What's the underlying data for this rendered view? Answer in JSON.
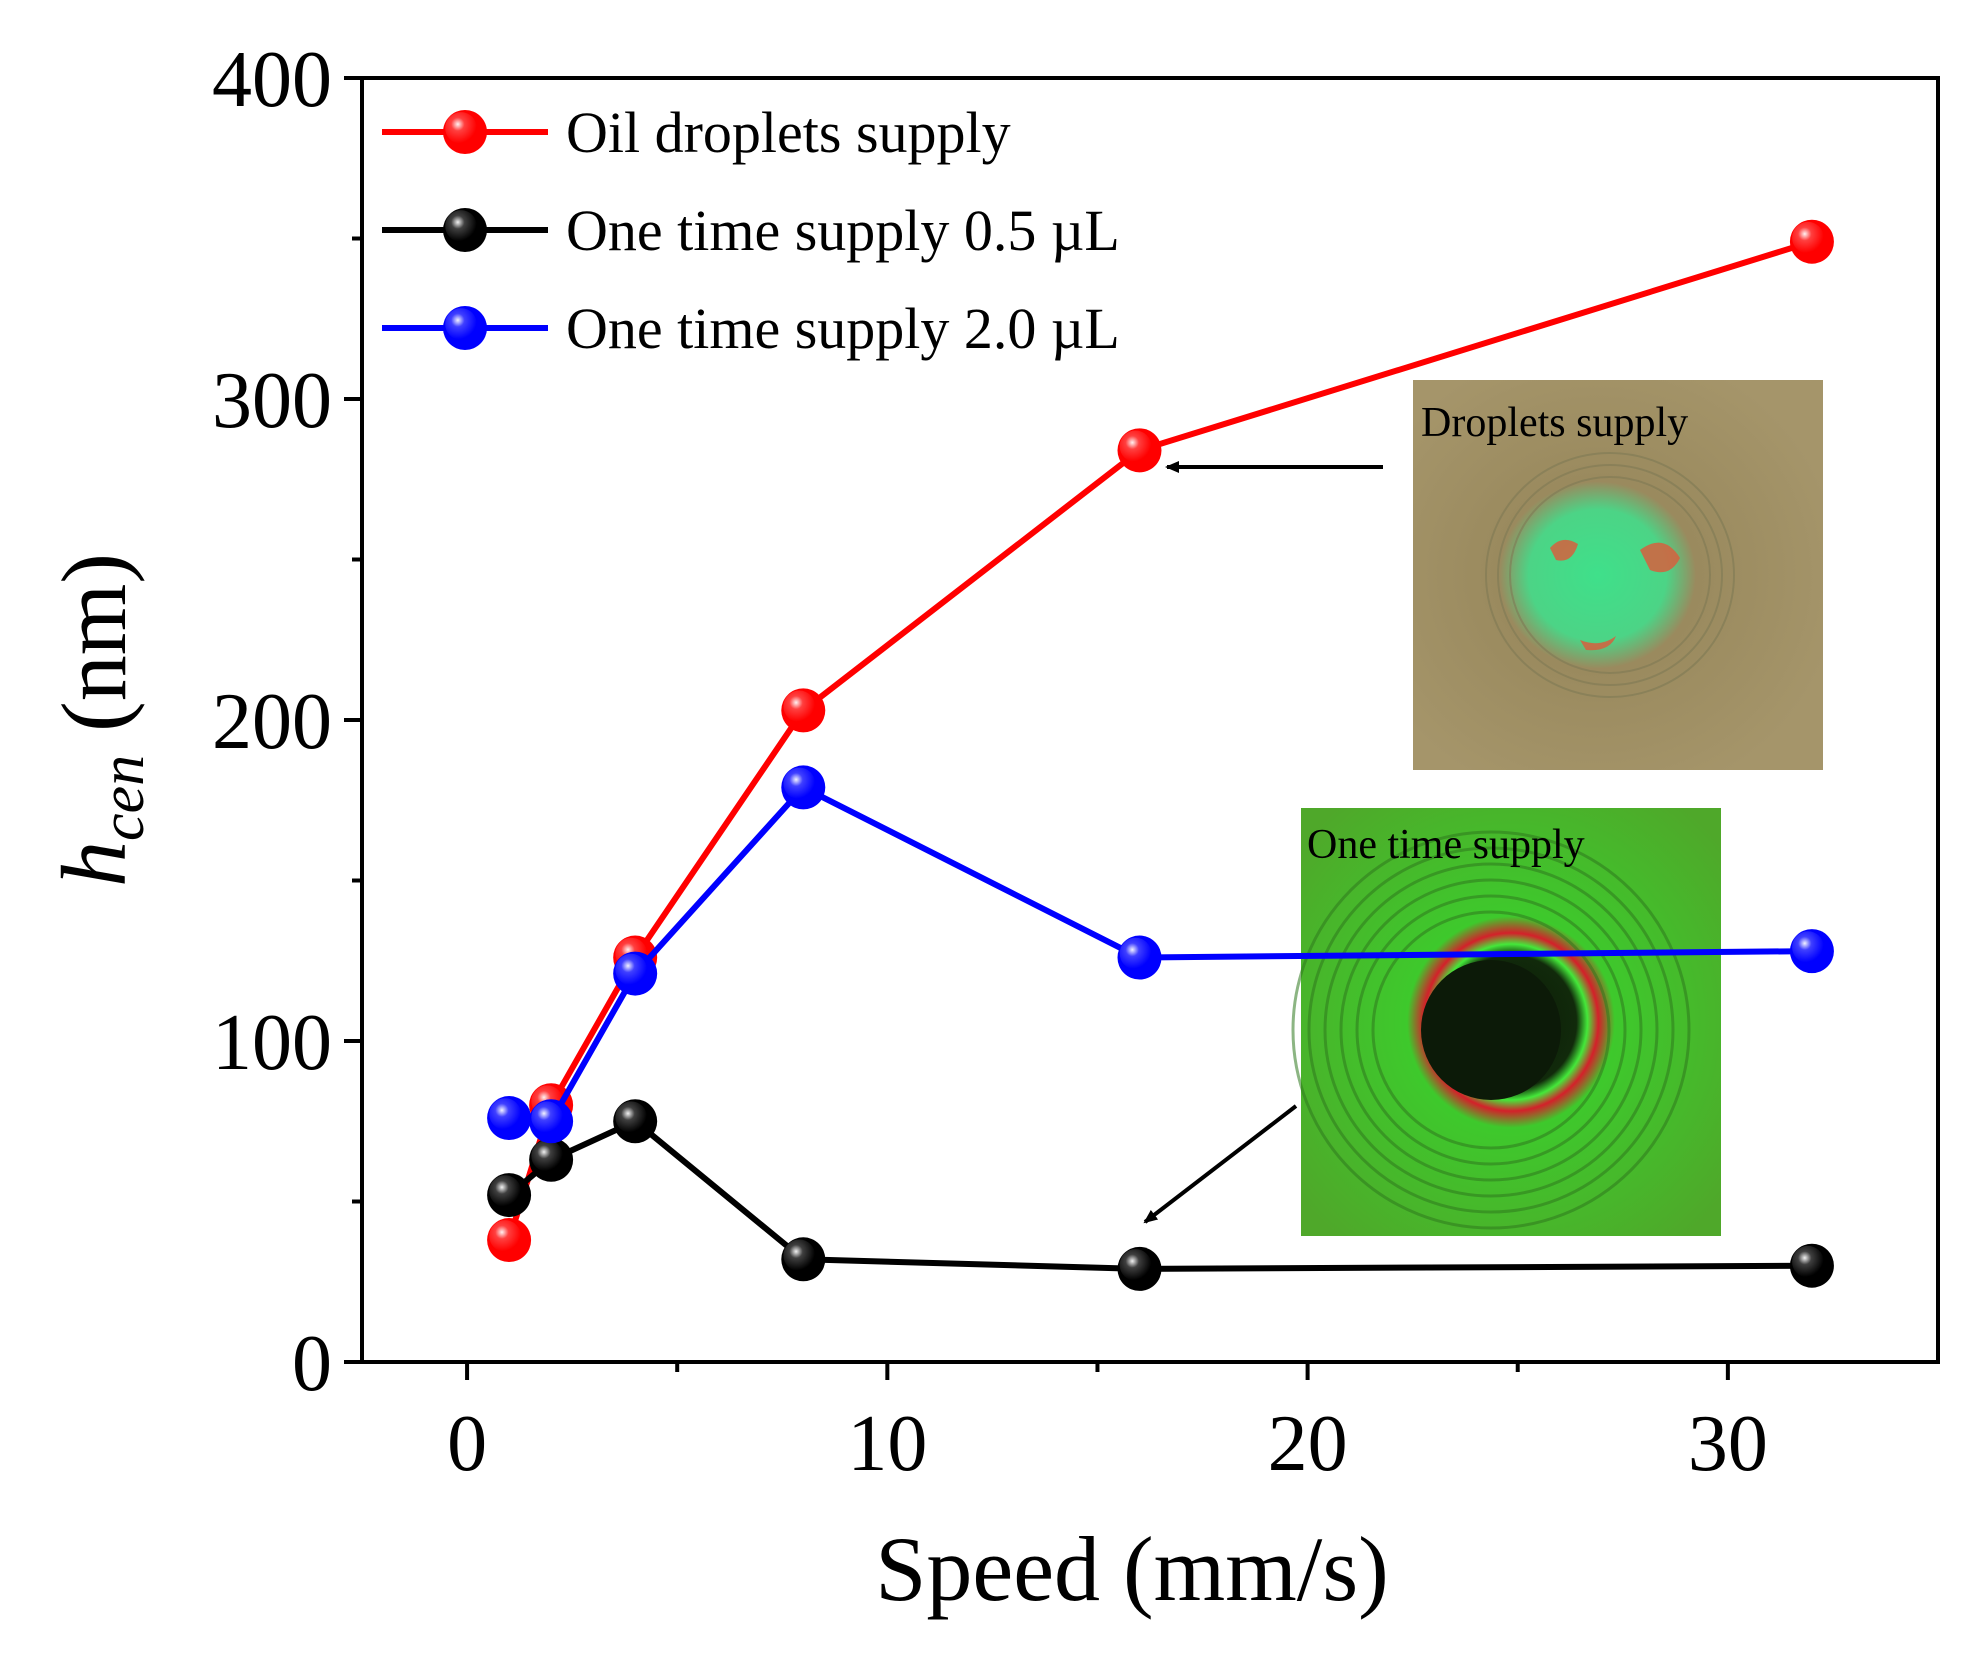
{
  "chart_data": {
    "type": "line",
    "title": "",
    "xlabel": "Speed (mm/s)",
    "ylabel": {
      "main": "h",
      "subscript": "cen",
      "unit": " (nm)"
    },
    "xlim": [
      -2.5,
      35
    ],
    "ylim": [
      0,
      400
    ],
    "xticks": [
      0,
      10,
      20,
      30
    ],
    "xminor": [
      5,
      15,
      25
    ],
    "yticks": [
      0,
      100,
      200,
      300,
      400
    ],
    "yminor": [
      50,
      150,
      250,
      350
    ],
    "x": [
      1,
      2,
      4,
      8,
      16,
      32
    ],
    "series": [
      {
        "name": "Oil droplets supply",
        "color": "#ff0000",
        "values": [
          38,
          80,
          126,
          203,
          284,
          349
        ]
      },
      {
        "name": "One time supply 0.5 µL",
        "color": "#000000",
        "values": [
          52,
          63,
          75,
          32,
          29,
          30
        ]
      },
      {
        "name": "One time supply 2.0 µL",
        "color": "#0000ff",
        "values": [
          76,
          75,
          121,
          179,
          126,
          128
        ]
      }
    ],
    "legend_position": "top-left",
    "insets": [
      {
        "label": "Droplets supply",
        "points_to": {
          "series": 0,
          "x": 16
        }
      },
      {
        "label": "One time supply",
        "points_to": {
          "series": 1,
          "x": 16
        }
      }
    ]
  }
}
